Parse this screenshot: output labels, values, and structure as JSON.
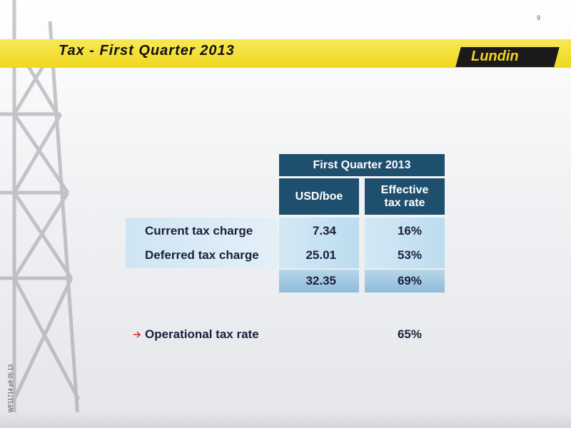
{
  "page_number": "9",
  "header": {
    "title": "Tax - First Quarter 2013",
    "logo": "Lundin"
  },
  "table": {
    "period": "First Quarter 2013",
    "columns": [
      "USD/boe",
      "Effective tax rate"
    ],
    "rows": [
      [
        "Current tax charge",
        "7.34",
        "16%"
      ],
      [
        "Deferred tax charge",
        "25.01",
        "53%"
      ]
    ],
    "total": [
      "32.35",
      "69%"
    ]
  },
  "operational": {
    "label": "Operational tax rate",
    "value": "65%"
  },
  "footer_code": "WF11714 p9 05.13"
}
